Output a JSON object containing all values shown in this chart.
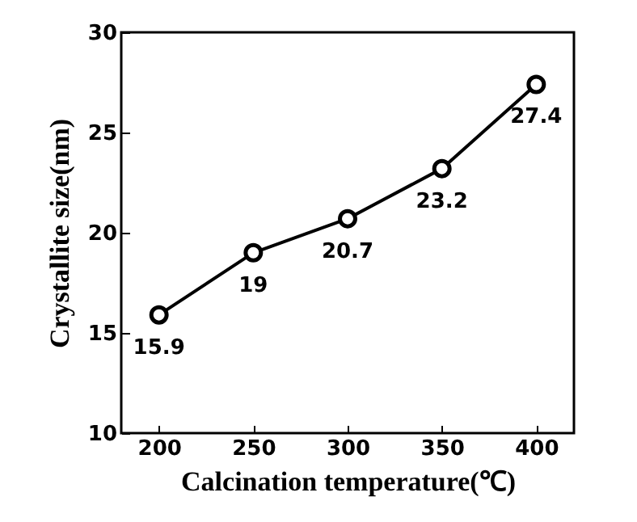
{
  "chart_data": {
    "type": "line",
    "xlabel": "Calcination temperature(℃)",
    "ylabel": "Crystallite size(nm)",
    "x": [
      200,
      250,
      300,
      350,
      400
    ],
    "values": [
      15.9,
      19,
      20.7,
      23.2,
      27.4
    ],
    "color": "#000000",
    "xlim": [
      180,
      420
    ],
    "ylim": [
      10,
      30
    ],
    "xticks": [
      200,
      250,
      300,
      350,
      400
    ],
    "yticks": [
      10,
      15,
      20,
      25,
      30
    ],
    "marker": "circle",
    "line_style": "solid",
    "data_labels": true,
    "grid": false
  }
}
